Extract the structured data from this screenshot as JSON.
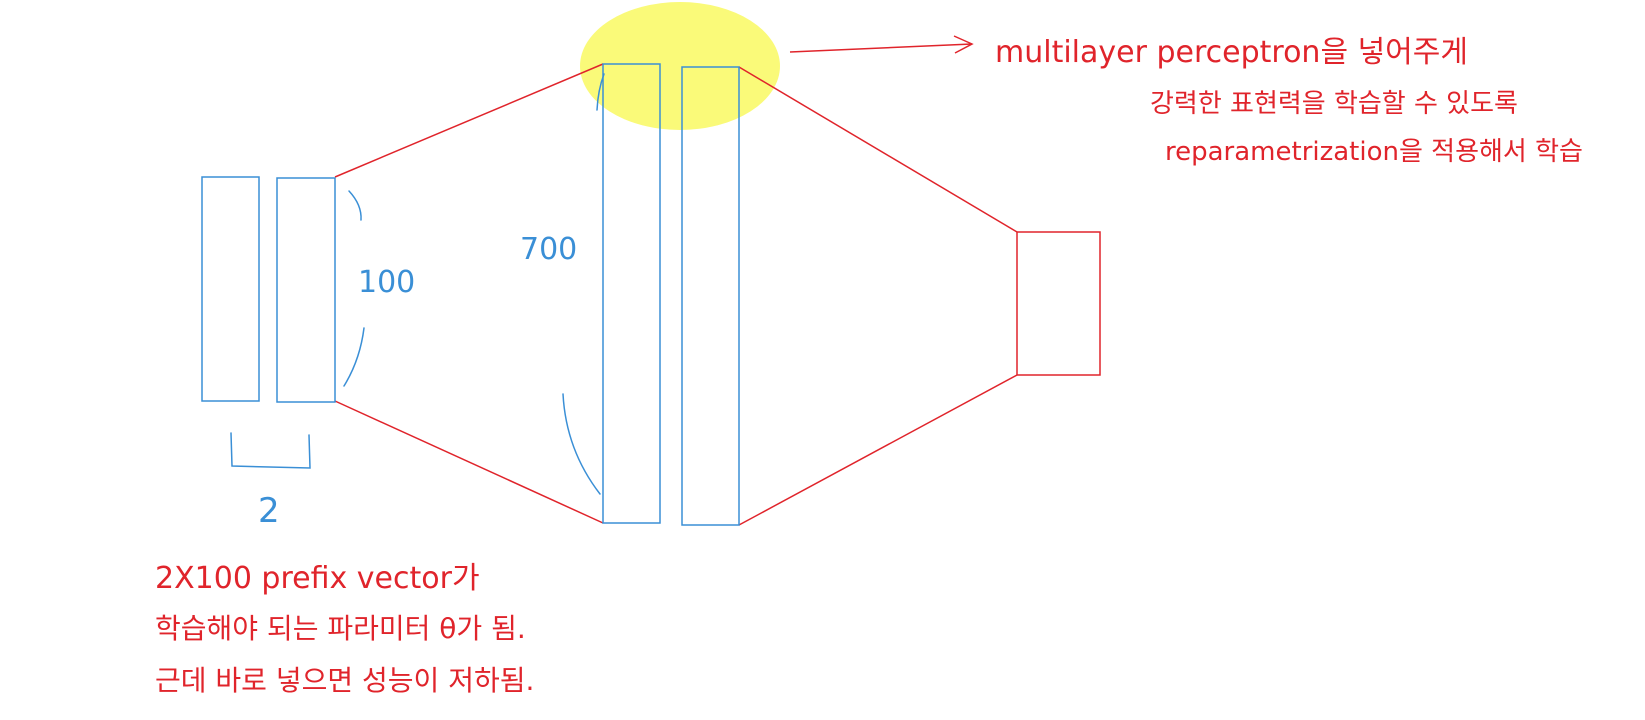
{
  "colors": {
    "blue": "#3a8fd6",
    "red": "#e0242b",
    "highlight": "#fafa6e",
    "background": "#ffffff"
  },
  "labels": {
    "prefix_height": "100",
    "prefix_width": "2",
    "hidden_size": "700"
  },
  "notes": {
    "mlp": [
      "multilayer perceptron을 넣어주게",
      "강력한 표현력을 학습할 수 있도록",
      "reparametrization을 적용해서 학습"
    ],
    "prefix": [
      "2X100 prefix vector가",
      "학습해야 되는 파라미터 θ가 됨.",
      "근데 바로 넣으면 성능이 저하됨."
    ]
  }
}
